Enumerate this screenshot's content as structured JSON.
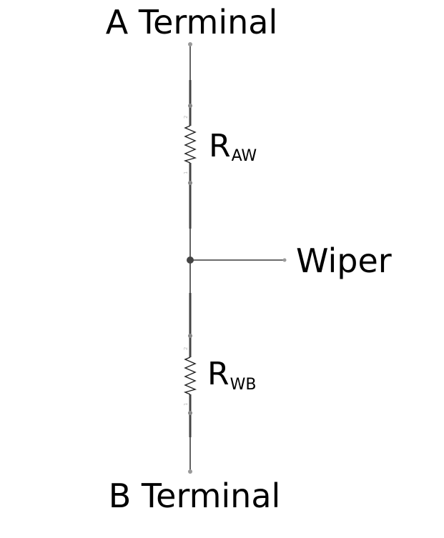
{
  "labels": {
    "a_terminal": "A Terminal",
    "b_terminal": "B Terminal",
    "wiper": "Wiper"
  },
  "resistors": [
    {
      "main": "R",
      "sub": "AW",
      "pin_top": "2",
      "pin_bottom": "1"
    },
    {
      "main": "R",
      "sub": "WB",
      "pin_top": "2",
      "pin_bottom": "1"
    }
  ],
  "colors": {
    "wire": "#3c3c3c",
    "node": "#555555",
    "lead": "#444444",
    "pin_label": "#b8b8b8"
  }
}
